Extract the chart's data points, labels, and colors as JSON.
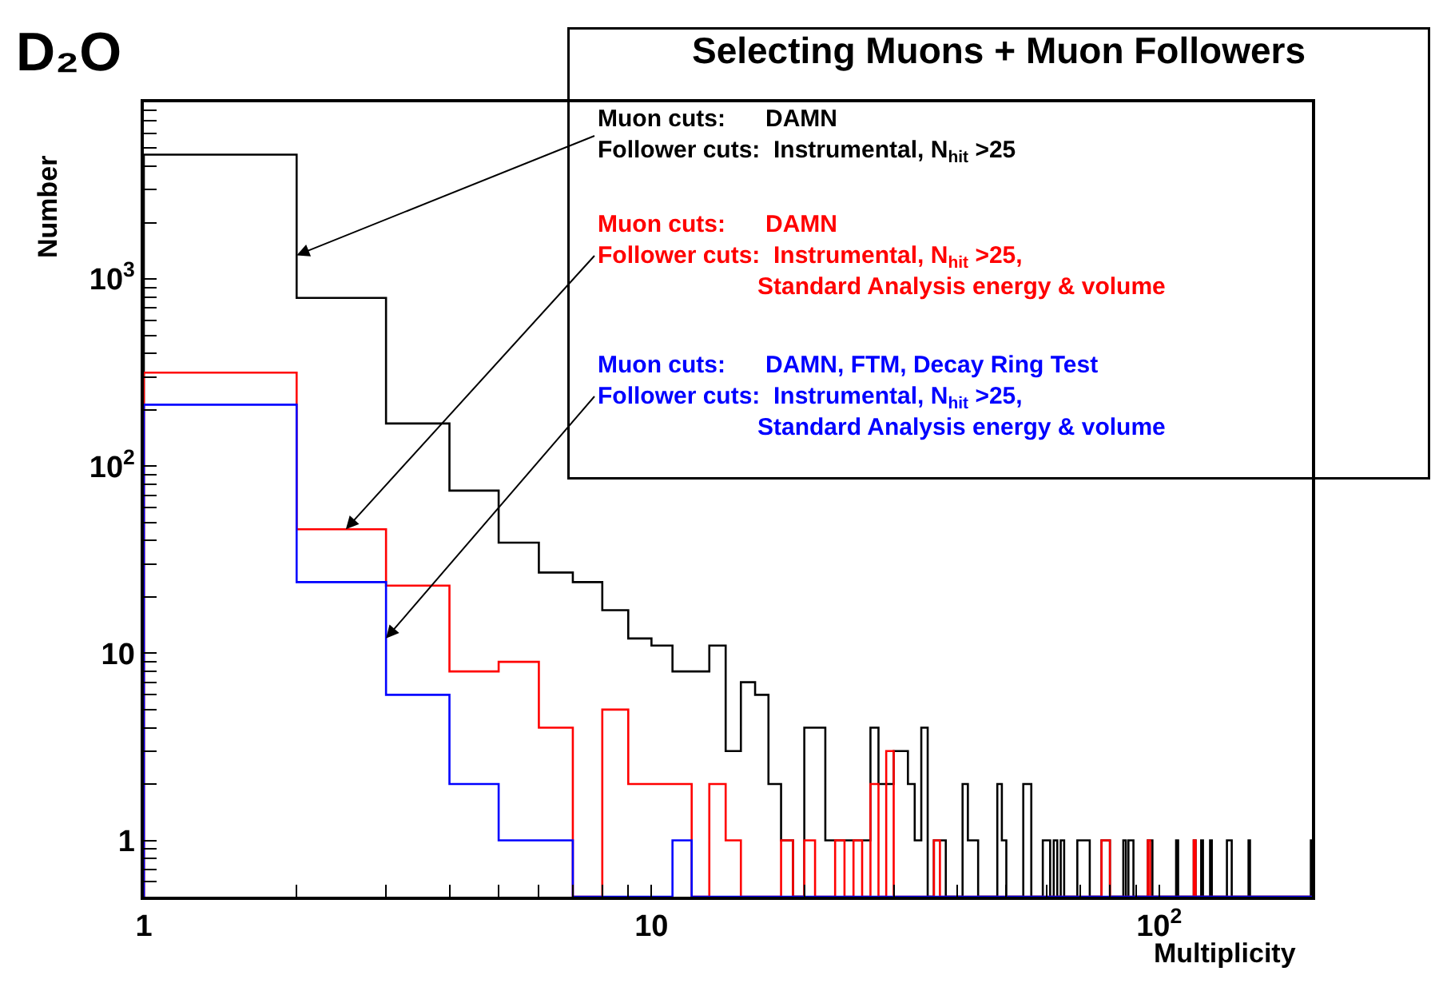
{
  "chart_data": {
    "type": "histogram",
    "title": "D₂O",
    "xlabel": "Multiplicity",
    "ylabel": "Number",
    "legend_title": "Selecting Muons + Muon Followers",
    "log": "xy",
    "xlim": [
      1,
      200
    ],
    "ylim": [
      0.5,
      8800
    ],
    "xticks": [
      1,
      {
        "value": 2,
        "label": null
      },
      {
        "value": 3,
        "label": null
      },
      {
        "value": 4,
        "label": null
      },
      {
        "value": 5,
        "label": null
      },
      {
        "value": 6,
        "label": null
      },
      {
        "value": 7,
        "label": null
      },
      {
        "value": 8,
        "label": null
      },
      {
        "value": 9,
        "label": null
      },
      10,
      {
        "value": 20,
        "label": null
      },
      {
        "value": 30,
        "label": null
      },
      {
        "value": 40,
        "label": null
      },
      {
        "value": 50,
        "label": null
      },
      {
        "value": 60,
        "label": null
      },
      {
        "value": 70,
        "label": null
      },
      {
        "value": 80,
        "label": null
      },
      {
        "value": 90,
        "label": null
      },
      {
        "value": 100,
        "label": "10$^{2}$"
      },
      {
        "value": 200,
        "label": null
      }
    ],
    "yticks": [
      {
        "value": 0.6,
        "label": null
      },
      {
        "value": 0.7,
        "label": null
      },
      {
        "value": 0.8,
        "label": null
      },
      {
        "value": 0.9,
        "label": null
      },
      1,
      {
        "value": 2,
        "label": null
      },
      {
        "value": 3,
        "label": null
      },
      {
        "value": 4,
        "label": null
      },
      {
        "value": 5,
        "label": null
      },
      {
        "value": 6,
        "label": null
      },
      {
        "value": 7,
        "label": null
      },
      {
        "value": 8,
        "label": null
      },
      {
        "value": 9,
        "label": null
      },
      10,
      {
        "value": 20,
        "label": null
      },
      {
        "value": 30,
        "label": null
      },
      {
        "value": 40,
        "label": null
      },
      {
        "value": 50,
        "label": null
      },
      {
        "value": 60,
        "label": null
      },
      {
        "value": 70,
        "label": null
      },
      {
        "value": 80,
        "label": null
      },
      {
        "value": 90,
        "label": null
      },
      {
        "value": 100,
        "label": "10$^{2}$"
      },
      {
        "value": 200,
        "label": null
      },
      {
        "value": 300,
        "label": null
      },
      {
        "value": 400,
        "label": null
      },
      {
        "value": 500,
        "label": null
      },
      {
        "value": 600,
        "label": null
      },
      {
        "value": 700,
        "label": null
      },
      {
        "value": 800,
        "label": null
      },
      {
        "value": 900,
        "label": null
      },
      {
        "value": 1000,
        "label": "10$^{3}$"
      },
      {
        "value": 2000,
        "label": null
      },
      {
        "value": 3000,
        "label": null
      },
      {
        "value": 4000,
        "label": null
      },
      {
        "value": 5000,
        "label": null
      },
      {
        "value": 6000,
        "label": null
      },
      {
        "value": 7000,
        "label": null
      },
      {
        "value": 8000,
        "label": null
      }
    ],
    "bins": [
      1,
      2,
      3,
      4,
      5,
      6,
      7,
      8,
      9,
      10,
      11,
      12,
      13,
      14,
      15,
      16,
      17,
      18,
      19,
      20,
      21,
      22,
      23,
      24,
      25,
      26,
      27,
      28,
      29,
      30,
      31,
      32,
      33,
      34,
      35,
      36,
      37,
      38,
      39,
      40,
      41,
      42,
      43,
      44,
      45,
      46,
      47,
      48,
      49,
      50,
      51,
      52,
      53,
      54,
      55,
      56,
      57,
      58,
      59,
      60,
      61,
      62,
      63,
      64,
      65,
      66,
      67,
      68,
      69,
      70,
      71,
      72,
      73,
      74,
      75,
      76,
      77,
      78,
      79,
      80,
      81,
      82,
      83,
      84,
      85,
      86,
      87,
      88,
      89,
      90,
      91,
      92,
      93,
      94,
      95,
      96,
      97,
      98,
      99,
      100,
      101,
      102,
      103,
      104,
      105,
      106,
      107,
      108,
      109,
      110,
      111,
      112,
      113,
      114,
      115,
      116,
      117,
      118,
      119,
      120,
      121,
      122,
      123,
      124,
      125,
      126,
      127,
      128,
      129,
      130,
      131,
      132,
      133,
      134,
      135,
      136,
      137,
      138,
      139,
      140,
      141,
      142,
      143,
      144,
      145,
      146,
      147,
      148,
      149,
      150,
      151,
      152,
      153,
      154,
      155,
      156,
      157,
      158,
      159,
      160,
      161,
      162,
      163,
      164,
      165,
      166,
      167,
      168,
      169,
      170,
      171,
      172,
      173,
      174,
      175,
      176,
      177,
      178,
      179,
      180,
      181,
      182,
      183,
      184,
      185,
      186,
      187,
      188,
      189,
      190,
      191,
      192,
      193,
      194,
      195,
      196,
      197,
      198,
      199,
      200
    ],
    "series": [
      {
        "color": "#000000",
        "values": [
          4620,
          793,
          169,
          74,
          39,
          27,
          24,
          17,
          12,
          11,
          8,
          8,
          11,
          3,
          7,
          6,
          2,
          1,
          null,
          4,
          4,
          1,
          1,
          1,
          1,
          1,
          4,
          2,
          2,
          3,
          3,
          2,
          1,
          4,
          null,
          1,
          1,
          null,
          null,
          null,
          2,
          1,
          1,
          null,
          null,
          null,
          null,
          2,
          1,
          null,
          null,
          null,
          null,
          2,
          2,
          null,
          null,
          null,
          1,
          1,
          null,
          1,
          null,
          1,
          null,
          null,
          null,
          null,
          1,
          1,
          1,
          1,
          null,
          null,
          null,
          null,
          1,
          1,
          1,
          null,
          null,
          null,
          null,
          null,
          1,
          null,
          1,
          1,
          null,
          null,
          null,
          null,
          null,
          null,
          1,
          1,
          null,
          null,
          null,
          null,
          null,
          null,
          null,
          null,
          null,
          null,
          null,
          1,
          null,
          null,
          null,
          null,
          null,
          null,
          null,
          null,
          1,
          null,
          null,
          null,
          1,
          null,
          null,
          null,
          null,
          1,
          null,
          null,
          null,
          null,
          null,
          null,
          null,
          null,
          null,
          1,
          1,
          1,
          null,
          null,
          null,
          null,
          null,
          null,
          null,
          null,
          null,
          null,
          null,
          1,
          null,
          null,
          null,
          null,
          null,
          null,
          null,
          null,
          null,
          null,
          null,
          null,
          null,
          null,
          null,
          null,
          null,
          null,
          null,
          null,
          null,
          null,
          null,
          null,
          null,
          null,
          null,
          null,
          null,
          null,
          null,
          null,
          null,
          null,
          null,
          null,
          null,
          null,
          null,
          null,
          null,
          null,
          null,
          null,
          null,
          null,
          null,
          null,
          1
        ]
      },
      {
        "color": "#ff0000",
        "values": [
          316,
          46,
          23,
          8,
          9,
          4,
          null,
          5,
          2,
          2,
          2,
          null,
          2,
          1,
          null,
          null,
          null,
          1,
          null,
          1,
          null,
          null,
          1,
          null,
          1,
          null,
          2,
          null,
          3,
          null,
          null,
          null,
          null,
          null,
          null,
          1,
          null,
          null,
          null,
          null,
          null,
          null,
          null,
          null,
          null,
          null,
          null,
          null,
          null,
          null,
          null,
          null,
          null,
          null,
          null,
          null,
          null,
          null,
          null,
          null,
          null,
          null,
          null,
          null,
          null,
          null,
          null,
          null,
          null,
          null,
          null,
          null,
          null,
          null,
          null,
          null,
          1,
          1,
          1,
          null,
          null,
          null,
          null,
          null,
          null,
          null,
          null,
          null,
          null,
          null,
          null,
          null,
          null,
          null,
          1,
          null,
          null,
          null,
          null,
          null,
          null,
          null,
          null,
          null,
          null,
          null,
          null,
          null,
          null,
          null,
          null,
          null,
          null,
          null,
          null,
          null,
          1,
          null,
          null,
          null,
          null,
          null,
          null,
          null,
          null,
          null,
          null,
          null,
          null,
          null,
          null,
          null,
          null,
          null,
          null,
          null,
          null,
          null,
          null,
          null,
          null,
          null,
          null,
          null,
          null,
          null,
          null,
          null,
          null,
          null,
          null,
          null,
          null,
          null,
          null,
          null,
          null,
          null,
          null,
          null,
          null,
          null,
          null,
          null,
          null,
          null,
          null,
          null,
          null,
          null,
          null,
          null,
          null,
          null,
          null,
          null,
          null,
          null,
          null,
          null,
          null,
          null,
          null,
          null,
          null,
          null,
          null,
          null,
          null,
          null,
          null,
          null,
          null,
          null,
          null,
          null,
          null,
          null,
          null
        ]
      },
      {
        "color": "#0000ff",
        "values": [
          213,
          24,
          6,
          2,
          1,
          1,
          null,
          null,
          null,
          null,
          1,
          null,
          null,
          null,
          null,
          null,
          null,
          null,
          null,
          null,
          null,
          null,
          null,
          null,
          null,
          null,
          null,
          null,
          null,
          null,
          null,
          null,
          null,
          null,
          null,
          null,
          null,
          null,
          null,
          null,
          null,
          null,
          null,
          null,
          null,
          null,
          null,
          null,
          null,
          null,
          null,
          null,
          null,
          null,
          null,
          null,
          null,
          null,
          null,
          null,
          null,
          null,
          null,
          null,
          null,
          null,
          null,
          null,
          null,
          null,
          null,
          null,
          null,
          null,
          null,
          null,
          null,
          null,
          null,
          null,
          null,
          null,
          null,
          null,
          null,
          null,
          null,
          null,
          null,
          null,
          null,
          null,
          null,
          null,
          null,
          null,
          null,
          null,
          null,
          null,
          null,
          null,
          null,
          null,
          null,
          null,
          null,
          null,
          null,
          null,
          null,
          null,
          null,
          null,
          null,
          null,
          null,
          null,
          null,
          null,
          null,
          null,
          null,
          null,
          null,
          null,
          null,
          null,
          null,
          null,
          null,
          null,
          null,
          null,
          null,
          null,
          null,
          null,
          null,
          null,
          null,
          null,
          null,
          null,
          null,
          null,
          null,
          null,
          null,
          null,
          null,
          null,
          null,
          null,
          null,
          null,
          null,
          null,
          null,
          null,
          null,
          null,
          null,
          null,
          null,
          null,
          null,
          null,
          null,
          null,
          null,
          null,
          null,
          null,
          null,
          null,
          null,
          null,
          null,
          null,
          null,
          null,
          null,
          null,
          null,
          null,
          null,
          null,
          null,
          null,
          null,
          null,
          null,
          null,
          null,
          null,
          null,
          null,
          null
        ]
      }
    ],
    "annotations": [
      {
        "text": "Muon cuts:      DAMN\nFollower cuts:  Instrumental, N$_{hit}$ >25",
        "x": 2,
        "y": 1340
      },
      {
        "text": "Muon cuts:      DAMN\nFollower cuts:  Instrumental, N$_{hit}$ >25,\n                        Standard Analysis energy & volume",
        "x": 2.5,
        "y": 46
      },
      {
        "text": "Muon cuts:      DAMN, FTM, Decay Ring Test\nFollower cuts:  Instrumental, N$_{hit}$ >25,\n                        Standard Analysis energy & volume",
        "x": 3,
        "y": 12
      }
    ]
  }
}
